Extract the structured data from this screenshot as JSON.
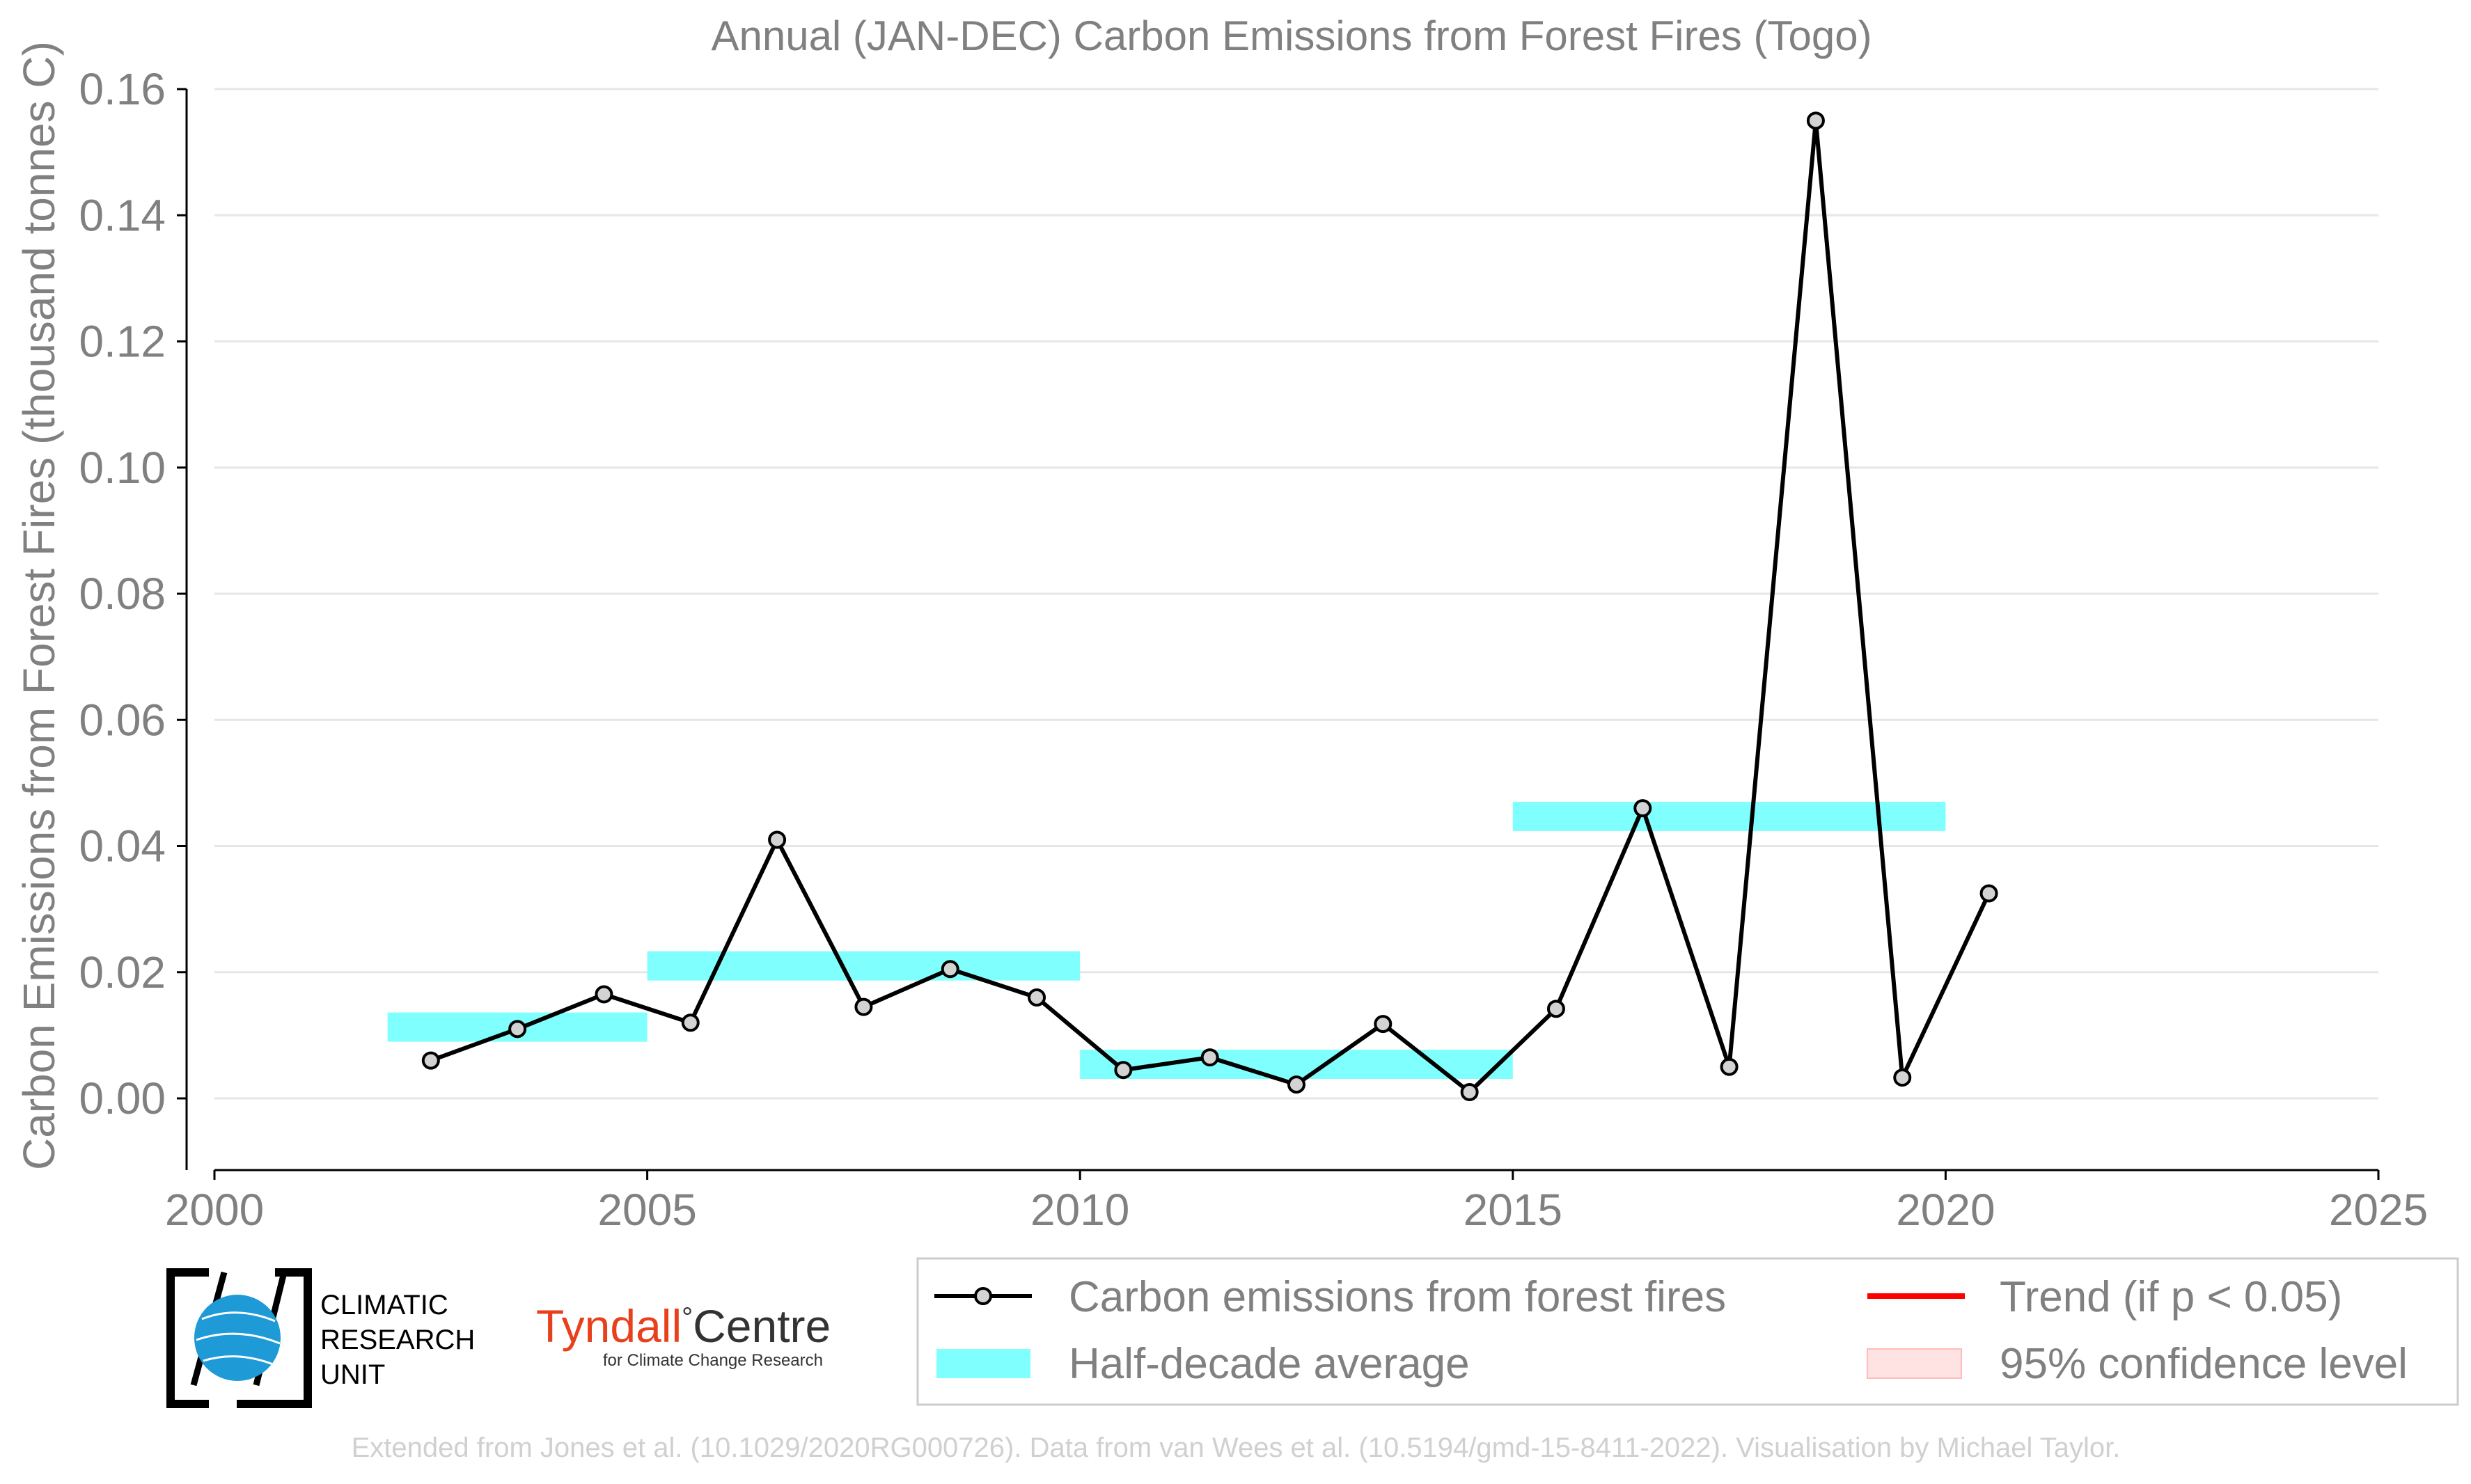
{
  "chart_data": {
    "type": "line",
    "title": "Annual (JAN-DEC) Carbon Emissions from Forest Fires (Togo)",
    "ylabel": "Carbon Emissions from Forest Fires (thousand tonnes C)",
    "xlabel": "",
    "xlim": [
      2000,
      2025
    ],
    "ylim": [
      -0.0115,
      0.16
    ],
    "xticks": [
      2000,
      2005,
      2010,
      2015,
      2020,
      2025
    ],
    "yticks": [
      0.0,
      0.02,
      0.04,
      0.06,
      0.08,
      0.1,
      0.12,
      0.14,
      0.16
    ],
    "ytick_labels": [
      "0.00",
      "0.02",
      "0.04",
      "0.06",
      "0.08",
      "0.10",
      "0.12",
      "0.14",
      "0.16"
    ],
    "xtick_labels": [
      "2000",
      "2005",
      "2010",
      "2015",
      "2020",
      "2025"
    ],
    "grid": "horizontal",
    "series": [
      {
        "name": "Carbon emissions from forest fires",
        "color": "#000000",
        "marker_fill": "#d3d3d3",
        "x": [
          2002.5,
          2003.5,
          2004.5,
          2005.5,
          2006.5,
          2007.5,
          2008.5,
          2009.5,
          2010.5,
          2011.5,
          2012.5,
          2013.5,
          2014.5,
          2015.5,
          2016.5,
          2017.5,
          2018.5,
          2019.5,
          2020.5
        ],
        "values": [
          0.006,
          0.011,
          0.0165,
          0.012,
          0.041,
          0.0145,
          0.0205,
          0.016,
          0.0045,
          0.0065,
          0.0022,
          0.0118,
          0.001,
          0.0142,
          0.046,
          0.005,
          0.155,
          0.0033,
          0.0325
        ]
      }
    ],
    "half_decade_average": {
      "name": "Half-decade average",
      "color": "#00ffff",
      "periods": [
        {
          "start": 2002,
          "end": 2005,
          "value": 0.0113
        },
        {
          "start": 2005,
          "end": 2010,
          "value": 0.021
        },
        {
          "start": 2010,
          "end": 2015,
          "value": 0.0054
        },
        {
          "start": 2015,
          "end": 2020,
          "value": 0.0447
        }
      ]
    },
    "legend": {
      "placement": "bottom",
      "entries": [
        {
          "label": "Carbon emissions from forest fires",
          "symbol": "line-marker",
          "color": "#000000"
        },
        {
          "label": "Trend (if p < 0.05)",
          "symbol": "line",
          "color": "#ff0000"
        },
        {
          "label": "Half-decade average",
          "symbol": "band",
          "color": "#00ffff"
        },
        {
          "label": "95% confidence level",
          "symbol": "band",
          "color": "#ffcccc"
        }
      ]
    }
  },
  "logos": {
    "cru_lines": [
      "CLIMATIC",
      "RESEARCH",
      "UNIT"
    ],
    "tyndall_name": "Tyndall",
    "tyndall_centre": "Centre",
    "tyndall_degree": "°",
    "tyndall_sub": "for Climate Change Research",
    "tyndall_color": "#e8401c",
    "cru_globe_color": "#1e9ad6"
  },
  "credit": "Extended from Jones et al. (10.1029/2020RG000726). Data from van Wees et al. (10.5194/gmd-15-8411-2022). Visualisation by Michael Taylor."
}
